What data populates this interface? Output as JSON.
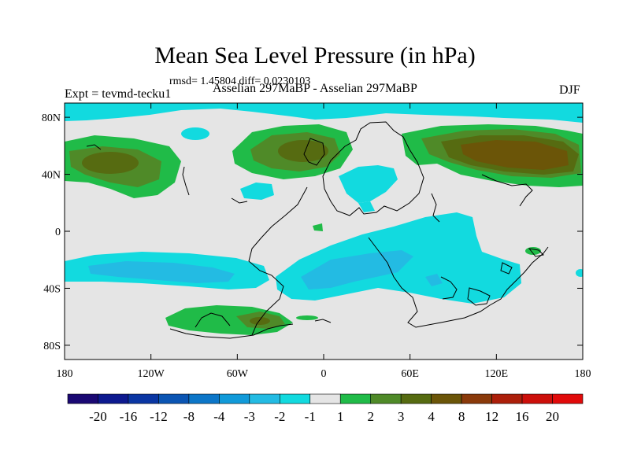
{
  "title": "Mean Sea Level Pressure (in hPa)",
  "subtitle": "rmsd= 1.45804 diff= 0.0230103",
  "left_label": "Expt = tevmd-tecku1",
  "center_label": "Asselian 297MaBP - Asselian 297MaBP",
  "right_label": "DJF",
  "axes": {
    "lat_ticks": [
      {
        "value": 80,
        "label": "80N"
      },
      {
        "value": 40,
        "label": "40N"
      },
      {
        "value": 0,
        "label": "0"
      },
      {
        "value": -40,
        "label": "40S"
      },
      {
        "value": -80,
        "label": "80S"
      }
    ],
    "lon_ticks": [
      {
        "value": -180,
        "label": "180"
      },
      {
        "value": -120,
        "label": "120W"
      },
      {
        "value": -60,
        "label": "60W"
      },
      {
        "value": 0,
        "label": "0"
      },
      {
        "value": 60,
        "label": "60E"
      },
      {
        "value": 120,
        "label": "120E"
      },
      {
        "value": 180,
        "label": "180"
      }
    ]
  },
  "colorbar": {
    "colors": [
      "#1a0873",
      "#0d198f",
      "#0a36a3",
      "#0b55b3",
      "#0c76c8",
      "#119ad9",
      "#23bbe3",
      "#12dadf",
      "#e5e5e5",
      "#20bb48",
      "#4f8a28",
      "#566b11",
      "#6b5508",
      "#8a3a0a",
      "#ac1f0a",
      "#cc0f0a",
      "#e10a0a"
    ],
    "labels": [
      "-20",
      "-16",
      "-12",
      "-8",
      "-4",
      "-3",
      "-2",
      "-1",
      "1",
      "2",
      "3",
      "4",
      "8",
      "12",
      "16",
      "20"
    ]
  },
  "map_colors": {
    "background": "#e5e5e5",
    "level_neg1": "#12dadf",
    "level_neg2": "#23bbe3",
    "level_pos1": "#20bb48",
    "level_pos2": "#4f8a28",
    "level_pos3": "#566b11",
    "level_pos4": "#6b5508",
    "coastline": "#000000"
  }
}
